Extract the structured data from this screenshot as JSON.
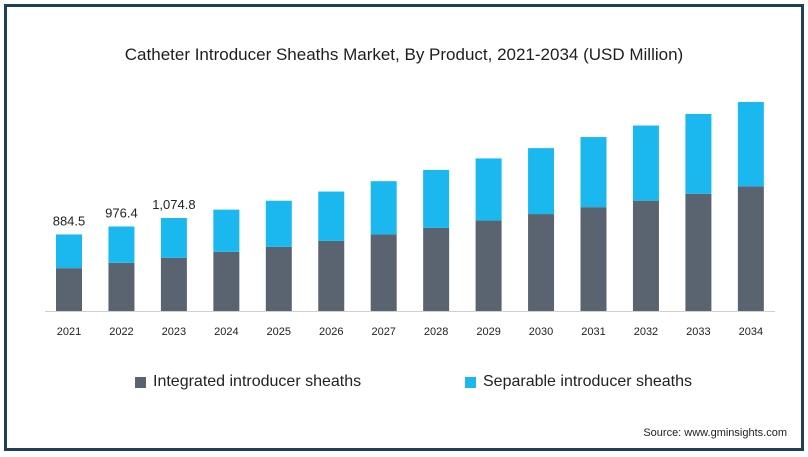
{
  "chart_data": {
    "type": "bar",
    "stacked": true,
    "title": "Catheter Introducer Sheaths Market, By Product, 2021-2034 (USD Million)",
    "categories": [
      "2021",
      "2022",
      "2023",
      "2024",
      "2025",
      "2026",
      "2027",
      "2028",
      "2029",
      "2030",
      "2031",
      "2032",
      "2033",
      "2034"
    ],
    "series": [
      {
        "name": "Integrated introducer sheaths",
        "color": "#5a6470",
        "values": [
          495,
          557,
          615,
          684,
          741,
          810,
          885,
          960,
          1045,
          1120,
          1200,
          1275,
          1355,
          1440
        ]
      },
      {
        "name": "Separable introducer sheaths",
        "color": "#1ab8ee",
        "values": [
          389.5,
          419.4,
          459.8,
          487,
          533,
          570,
          615,
          670,
          718,
          762,
          810,
          868,
          922,
          975
        ]
      }
    ],
    "data_labels": [
      "884.5",
      "976.4",
      "1,074.8"
    ],
    "legend_position": "bottom",
    "grid": false
  },
  "source": "Source: www.gminsights.com"
}
